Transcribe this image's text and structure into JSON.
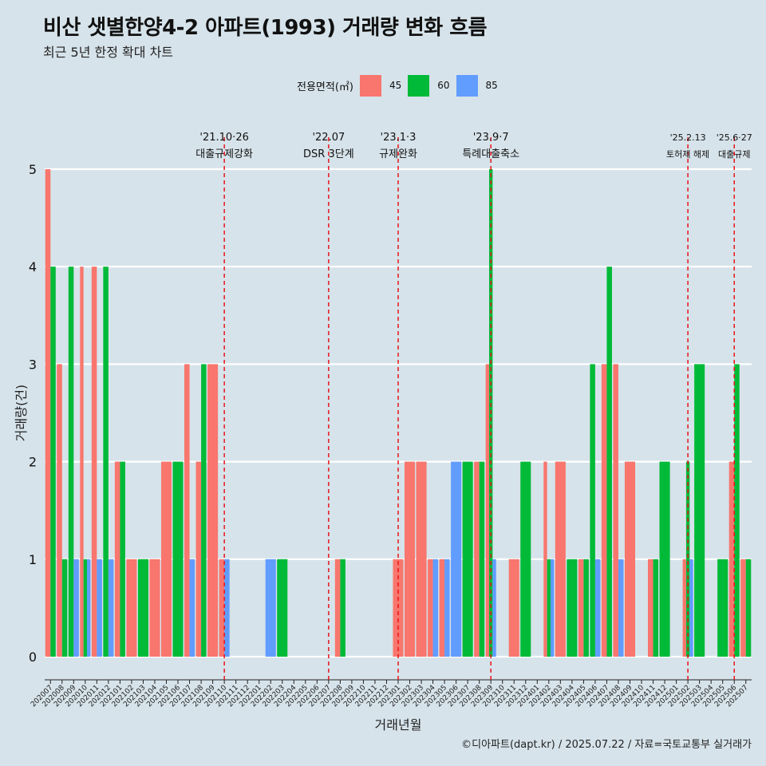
{
  "title": "비산 샛별한양4-2 아파트(1993) 거래량 변화 흐름",
  "subtitle": "최근 5년 한정 확대 차트",
  "caption": "©디아파트(dapt.kr) / 2025.07.22 / 자료=국토교통부 실거래가",
  "legend": {
    "title": "전용면적(㎡)",
    "items": [
      {
        "label": "45",
        "color": "#f8766d"
      },
      {
        "label": "60",
        "color": "#00ba38"
      },
      {
        "label": "85",
        "color": "#619cff"
      }
    ]
  },
  "chart_data": {
    "type": "bar",
    "xlabel": "거래년월",
    "ylabel": "거래량(건)",
    "ylim": [
      0,
      5
    ],
    "yticks": [
      0,
      1,
      2,
      3,
      4,
      5
    ],
    "grid": true,
    "legend_position": "top",
    "categories": [
      "202007",
      "202008",
      "202009",
      "202010",
      "202011",
      "202012",
      "202101",
      "202102",
      "202103",
      "202104",
      "202105",
      "202106",
      "202107",
      "202108",
      "202109",
      "202110",
      "202111",
      "202112",
      "202201",
      "202202",
      "202203",
      "202204",
      "202205",
      "202206",
      "202207",
      "202208",
      "202209",
      "202210",
      "202211",
      "202212",
      "202301",
      "202302",
      "202303",
      "202304",
      "202305",
      "202306",
      "202307",
      "202308",
      "202309",
      "202310",
      "202311",
      "202312",
      "202401",
      "202402",
      "202403",
      "202404",
      "202405",
      "202406",
      "202407",
      "202408",
      "202409",
      "202410",
      "202411",
      "202412",
      "202501",
      "202502",
      "202503",
      "202504",
      "202505",
      "202506",
      "202507"
    ],
    "tick_labels": [
      "202007",
      "202008",
      "202009",
      "202010",
      "202011",
      "202012",
      "202101",
      "202102",
      "202103",
      "202104",
      "202105",
      "202106",
      "202107",
      "202108",
      "202109",
      "202110",
      "202111",
      "202112",
      "202201",
      "202202",
      "202203",
      "202204",
      "202205",
      "202206",
      "202207",
      "202208",
      "202209",
      "202210",
      "202211",
      "202212",
      "202301",
      "202302",
      "202303",
      "202304",
      "202305",
      "202306",
      "202307",
      "202308",
      "202309",
      "202310",
      "202311",
      "202312",
      "202401",
      "202402",
      "202403",
      "202404",
      "202405",
      "202406",
      "202407",
      "202408",
      "202409",
      "202410",
      "202411",
      "202412",
      "202501",
      "202502",
      "202503",
      "202504",
      "202505",
      "202506",
      "202507"
    ],
    "series": [
      {
        "name": "45",
        "color": "#f8766d",
        "values": [
          5,
          3,
          0,
          4,
          4,
          0,
          2,
          1,
          0,
          1,
          2,
          0,
          3,
          2,
          3,
          1,
          0,
          0,
          0,
          0,
          0,
          0,
          0,
          0,
          0,
          1,
          0,
          0,
          0,
          0,
          1,
          2,
          2,
          1,
          1,
          0,
          0,
          2,
          3,
          0,
          1,
          0,
          0,
          2,
          2,
          0,
          1,
          0,
          3,
          3,
          2,
          0,
          1,
          0,
          0,
          1,
          0,
          0,
          0,
          2,
          1
        ]
      },
      {
        "name": "60",
        "color": "#00ba38",
        "values": [
          4,
          1,
          4,
          1,
          0,
          4,
          2,
          0,
          1,
          0,
          0,
          2,
          0,
          3,
          0,
          0,
          0,
          0,
          0,
          0,
          1,
          0,
          0,
          0,
          0,
          1,
          0,
          0,
          0,
          0,
          0,
          0,
          0,
          0,
          0,
          0,
          2,
          2,
          5,
          0,
          0,
          2,
          0,
          1,
          0,
          1,
          1,
          3,
          4,
          0,
          0,
          0,
          1,
          2,
          0,
          2,
          3,
          0,
          1,
          3,
          1
        ]
      },
      {
        "name": "85",
        "color": "#619cff",
        "values": [
          0,
          0,
          1,
          1,
          1,
          1,
          0,
          0,
          0,
          0,
          0,
          0,
          1,
          0,
          0,
          1,
          0,
          0,
          0,
          1,
          0,
          0,
          0,
          0,
          0,
          0,
          0,
          0,
          0,
          0,
          0,
          0,
          0,
          1,
          1,
          2,
          0,
          0,
          1,
          0,
          0,
          0,
          0,
          1,
          0,
          0,
          0,
          1,
          0,
          1,
          0,
          0,
          0,
          0,
          0,
          1,
          0,
          0,
          0,
          0,
          0
        ]
      }
    ],
    "annotations": [
      {
        "date": "'21.10·26",
        "text": "대출규제강화",
        "month": "202110"
      },
      {
        "date": "'22.07",
        "text": "DSR 3단계",
        "month": "202207"
      },
      {
        "date": "'23.1·3",
        "text": "규제완화",
        "month": "202301"
      },
      {
        "date": "'23.9·7",
        "text": "특례대출축소",
        "month": "202309"
      },
      {
        "date": "'25.2.13",
        "text": "토허제 해제",
        "month": "202502"
      },
      {
        "date": "'25.6·27",
        "text": "대출규제",
        "month": "202506"
      }
    ]
  }
}
